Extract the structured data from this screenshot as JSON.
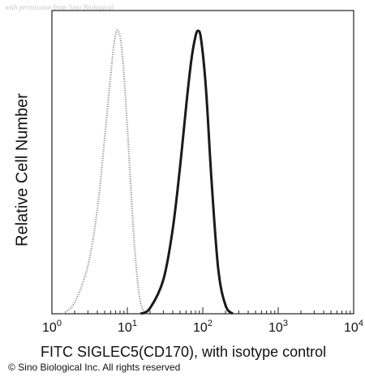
{
  "watermark": "with permission from Sino Biological",
  "copyright": "© Sino Biological Inc. All rights reserved",
  "colors": {
    "isotype": "#9a9a9a",
    "siglec5": "#1a1a1a",
    "axis": "#222222"
  },
  "chart_data": {
    "type": "line",
    "title": "",
    "xlabel": "FITC SIGLEC5(CD170), with isotype control",
    "ylabel": "Relative Cell Number",
    "x_scale": "log",
    "xlim": [
      1,
      10000
    ],
    "ylim": [
      0,
      1
    ],
    "x_ticks": [
      {
        "value": 1,
        "base": "10",
        "exp": "0"
      },
      {
        "value": 10,
        "base": "10",
        "exp": "1"
      },
      {
        "value": 100,
        "base": "10",
        "exp": "2"
      },
      {
        "value": 1000,
        "base": "10",
        "exp": "3"
      },
      {
        "value": 10000,
        "base": "10",
        "exp": "4"
      }
    ],
    "grid": false,
    "legend": "none",
    "series": [
      {
        "style": "dotted",
        "color": "#9a9a9a",
        "x": [
          1.4,
          2,
          3,
          4,
          5,
          6,
          6.8,
          7.5,
          8.5,
          10,
          12,
          14,
          16,
          18
        ],
        "y": [
          0.0,
          0.04,
          0.17,
          0.37,
          0.62,
          0.84,
          0.97,
          1.0,
          0.93,
          0.66,
          0.3,
          0.09,
          0.015,
          0.0
        ]
      },
      {
        "style": "solid",
        "color": "#1a1a1a",
        "x": [
          15,
          20,
          30,
          40,
          50,
          60,
          70,
          80,
          87,
          95,
          110,
          130,
          160,
          200,
          250
        ],
        "y": [
          0.0,
          0.02,
          0.12,
          0.3,
          0.52,
          0.73,
          0.89,
          0.98,
          1.0,
          0.97,
          0.8,
          0.48,
          0.16,
          0.03,
          0.0
        ]
      }
    ]
  }
}
